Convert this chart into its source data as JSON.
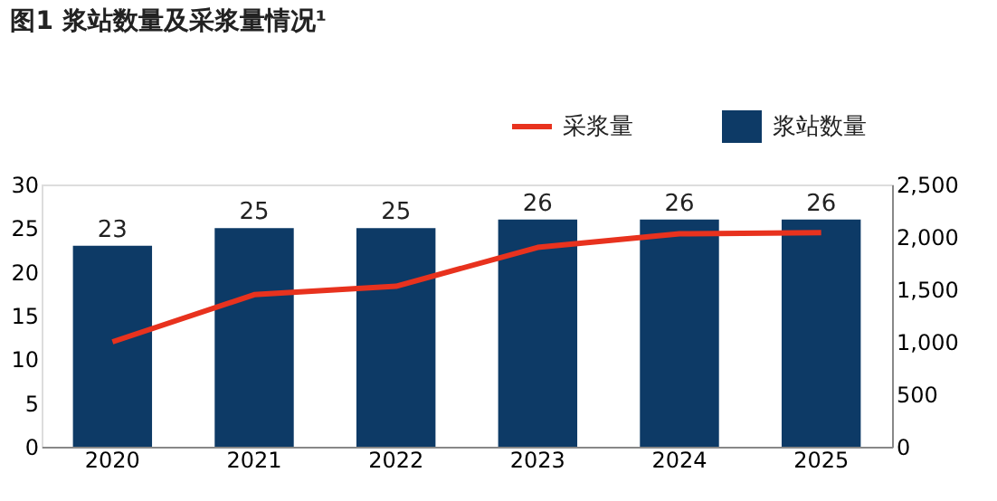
{
  "chart_data": {
    "type": "bar",
    "title": "图1 浆站数量及采浆量情况¹",
    "categories": [
      "2020",
      "2021",
      "2022",
      "2023",
      "2024",
      "2025"
    ],
    "series": [
      {
        "name": "采浆量",
        "type": "line",
        "axis": "y2",
        "color": "#e8321e",
        "values": [
          1000,
          1450,
          1530,
          1900,
          2030,
          2040
        ]
      },
      {
        "name": "浆站数量",
        "color": "#0d3a66",
        "values": [
          23,
          25,
          25,
          26,
          26,
          26
        ],
        "value_labels": [
          "23",
          "25",
          "25",
          "26",
          "26",
          "26"
        ]
      }
    ],
    "ylim": [
      0,
      30
    ],
    "yticks": [
      0,
      5,
      10,
      15,
      20,
      25,
      30
    ],
    "y2lim": [
      0,
      2500
    ],
    "y2ticks": [
      0,
      {
        "value": 500,
        "label": "500"
      },
      {
        "value": 1000,
        "label": "1,000"
      },
      {
        "value": 1500,
        "label": "1,500"
      },
      {
        "value": 2000,
        "label": "2,000"
      },
      {
        "value": 2500,
        "label": "2,500"
      }
    ],
    "grid": false,
    "legend": "top right"
  }
}
